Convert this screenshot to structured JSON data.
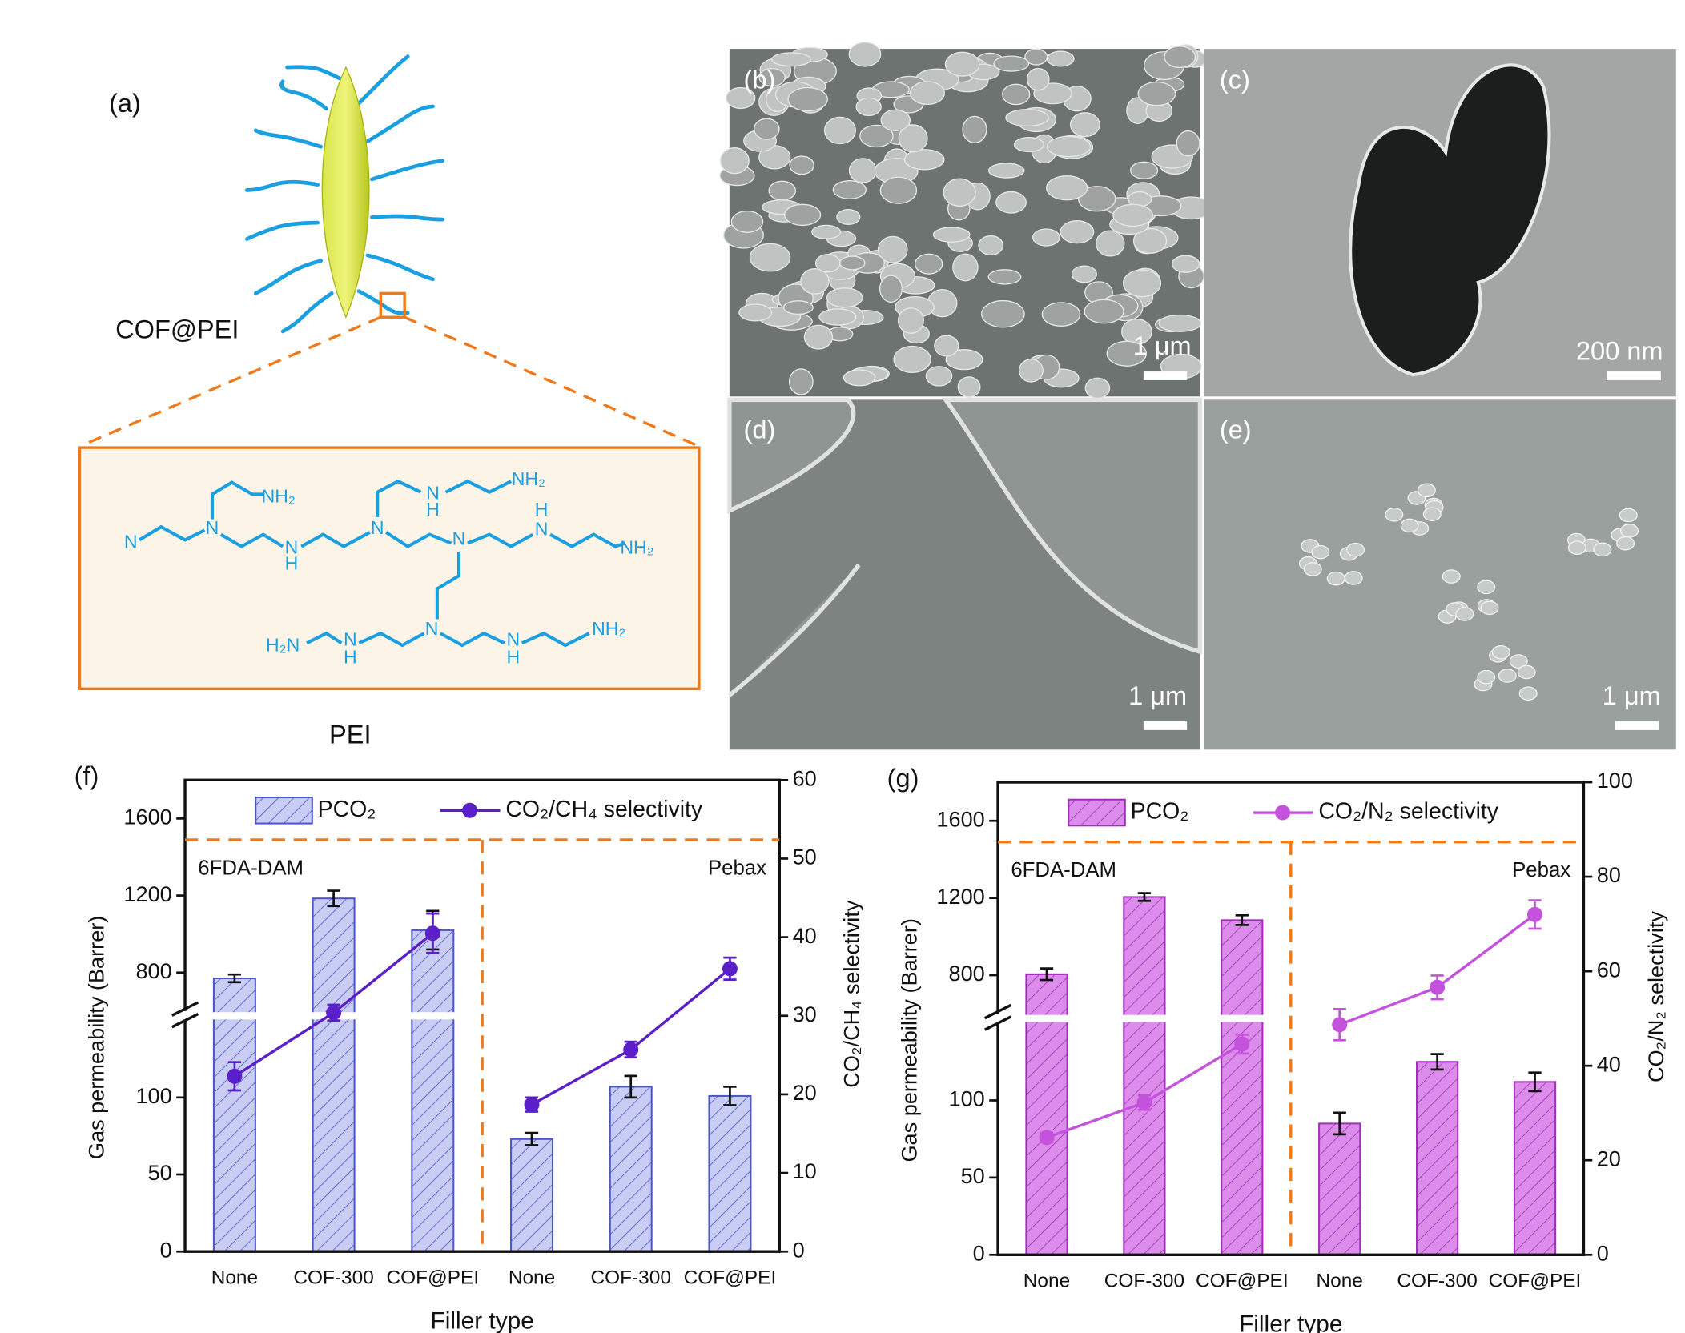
{
  "panels": {
    "a": "(a)",
    "b": "(b)",
    "c": "(c)",
    "d": "(d)",
    "e": "(e)"
  },
  "panel_a": {
    "particle_label": "COF@PEI",
    "structure_title": "PEI",
    "structure_atoms": [
      "N",
      "N",
      "NH₂",
      "N",
      "H",
      "N",
      "N",
      "H",
      "NH₂",
      "N",
      "N",
      "H",
      "NH₂",
      "N",
      "H₂N",
      "N",
      "H",
      "N",
      "H",
      "NH₂"
    ]
  },
  "scale_bars": {
    "b": "1 μm",
    "c": "200 nm",
    "d": "1 μm",
    "e": "1 μm"
  },
  "chart_data": [
    {
      "type": "bar",
      "panel_label": "(f)",
      "xlabel": "Filler type",
      "ylabel": "Gas permeability (Barrer)",
      "y2label": "CO₂/CH₄ selectivity",
      "groups": [
        {
          "name": "6FDA-DAM",
          "categories": [
            "None",
            "COF-300",
            "COF@PEI"
          ]
        },
        {
          "name": "Pebax",
          "categories": [
            "None",
            "COF-300",
            "COF@PEI"
          ]
        }
      ],
      "ylim": [
        0,
        1800
      ],
      "ybreak": [
        150,
        600
      ],
      "yticks": [
        0,
        50,
        100,
        800,
        1200,
        1600
      ],
      "y2lim": [
        0,
        60
      ],
      "y2ticks": [
        0,
        10,
        20,
        30,
        40,
        50,
        60
      ],
      "legend": "top",
      "series": [
        {
          "name": "PCO₂",
          "type": "bar",
          "color": "#c9cdf4",
          "edgecolor": "#4b56c8",
          "values": [
            770,
            1185,
            1020,
            73,
            107,
            101
          ],
          "errors": [
            20,
            40,
            100,
            4,
            7,
            6
          ]
        },
        {
          "name": "CO₂/CH₄ selectivity",
          "type": "line",
          "axis": "y2",
          "color": "#5a1fc8",
          "values": [
            22.3,
            30.4,
            40.5,
            18.7,
            25.7,
            36.0
          ],
          "errors": [
            1.8,
            1.0,
            2.5,
            0.9,
            1.0,
            1.4
          ]
        }
      ]
    },
    {
      "type": "bar",
      "panel_label": "(g)",
      "xlabel": "Filler type",
      "ylabel": "Gas permeability (Barrer)",
      "y2label": "CO₂/N₂ selectivity",
      "groups": [
        {
          "name": "6FDA-DAM",
          "categories": [
            "None",
            "COF-300",
            "COF@PEI"
          ]
        },
        {
          "name": "Pebax",
          "categories": [
            "None",
            "COF-300",
            "COF@PEI"
          ]
        }
      ],
      "ylim": [
        0,
        1800
      ],
      "ybreak": [
        150,
        600
      ],
      "yticks": [
        0,
        50,
        100,
        800,
        1200,
        1600
      ],
      "y2lim": [
        0,
        100
      ],
      "y2ticks": [
        0,
        20,
        40,
        60,
        80,
        100
      ],
      "legend": "top",
      "series": [
        {
          "name": "PCO₂",
          "type": "bar",
          "color": "#dc8ceb",
          "edgecolor": "#a030b8",
          "values": [
            805,
            1205,
            1085,
            85,
            125,
            112
          ],
          "errors": [
            30,
            20,
            25,
            7,
            5,
            6
          ]
        },
        {
          "name": "CO₂/N₂ selectivity",
          "type": "line",
          "axis": "y2",
          "color": "#c552dc",
          "values": [
            24.8,
            32.2,
            44.6,
            48.7,
            56.6,
            72.0
          ],
          "errors": [
            1.0,
            1.5,
            2.0,
            3.3,
            2.5,
            3.0
          ]
        }
      ]
    }
  ]
}
